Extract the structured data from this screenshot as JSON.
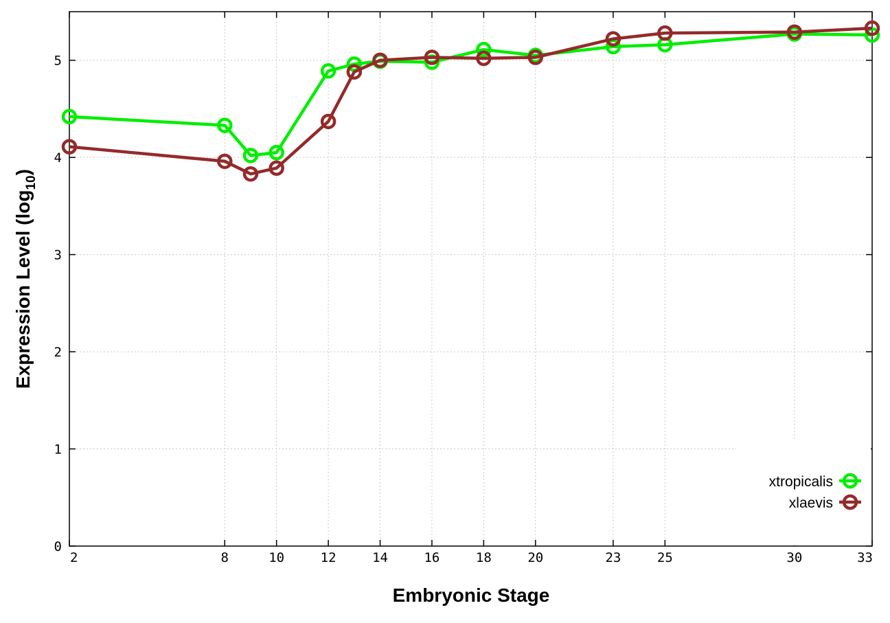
{
  "chart_data": {
    "type": "line",
    "xlabel": "Embryonic Stage",
    "ylabel_main": "Expression Level (log",
    "ylabel_sub": "10",
    "ylabel_close": ")",
    "x": [
      2,
      8,
      9,
      10,
      12,
      13,
      14,
      16,
      18,
      20,
      23,
      25,
      30,
      33
    ],
    "x_ticks": [
      2,
      8,
      10,
      12,
      14,
      16,
      18,
      20,
      23,
      25,
      30,
      33
    ],
    "y_ticks": [
      0,
      1,
      2,
      3,
      4,
      5
    ],
    "xlim": [
      2,
      33
    ],
    "ylim": [
      0,
      5.5
    ],
    "grid": true,
    "legend_position": "bottom-right",
    "series": [
      {
        "name": "xtropicalis",
        "color": "#00ee00",
        "values": [
          4.42,
          4.33,
          4.02,
          4.05,
          4.89,
          4.96,
          4.99,
          4.98,
          5.11,
          5.05,
          5.14,
          5.16,
          5.27,
          5.26
        ]
      },
      {
        "name": "xlaevis",
        "color": "#942a2a",
        "values": [
          4.11,
          3.96,
          3.83,
          3.89,
          4.37,
          4.88,
          5.0,
          5.03,
          5.02,
          5.03,
          5.22,
          5.28,
          5.29,
          5.33
        ]
      }
    ]
  }
}
